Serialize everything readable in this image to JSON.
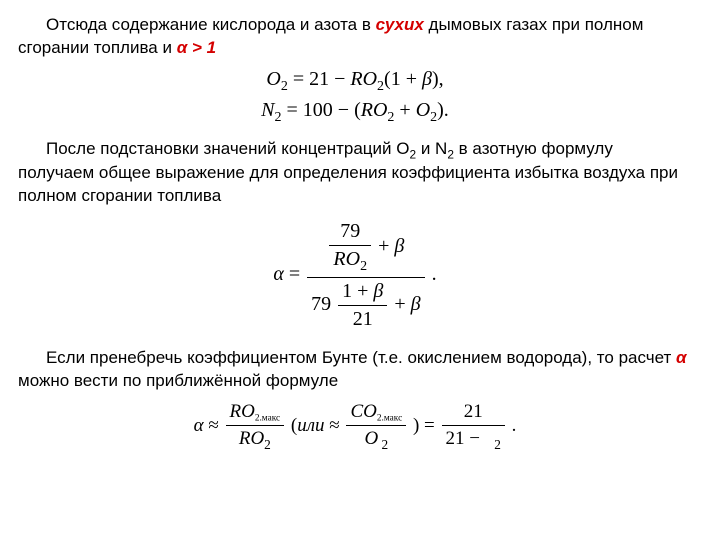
{
  "colors": {
    "text": "#000000",
    "accent": "#d40000",
    "background": "#ffffff"
  },
  "typography": {
    "body_family": "Arial, sans-serif",
    "body_size_pt": 13,
    "math_family": "Times New Roman, serif",
    "math_size_pt": 15
  },
  "para1": {
    "t1": "Отсюда содержание кислорода и азота в ",
    "em": "сухих",
    "t2": " дымовых газах при полном сгорании топлива и ",
    "alpha": "α > 1"
  },
  "eq1": {
    "line1": "O₂ = 21 − RO₂(1 + β),",
    "line2": "N₂ = 100 − (RO₂ + O₂)."
  },
  "para2": {
    "t1": "После подстановки значений концентраций O",
    "s1": "2",
    "t2": " и N",
    "s2": "2",
    "t3": " в азотную формулу получаем общее выражение для определения коэффициента избытка воздуха при полном сгорании топлива"
  },
  "eq2": {
    "lhs": "α =",
    "num_top": "79",
    "num_top_den": "RO₂",
    "plus_beta": " + β",
    "den_coef": "79",
    "den_frac_num": "1 + β",
    "den_frac_den": "21",
    "period": "."
  },
  "para3": {
    "t1": "Если пренебречь коэффициентом Бунте (т.е. окислением водорода), то расчет ",
    "alpha": "α",
    "t2": " можно вести по приближённой формуле"
  },
  "eq3": {
    "lhs": "α ≈",
    "f1_num": "RO",
    "f1_num_sub": "2.макс",
    "f1_den": "RO",
    "f1_den_sub": "2",
    "mid_open": "(или ≈",
    "f2_num": "CO",
    "f2_num_sub": "2.макс",
    "f2_den": "O",
    "f2_den_sub": "2",
    "mid_close": ") =",
    "f3_num": "21",
    "f3_den_a": "21 −",
    "f3_den_sub": "2",
    "period": "."
  }
}
